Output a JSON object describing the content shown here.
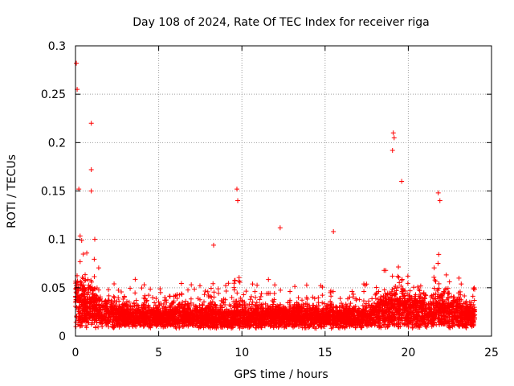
{
  "chart_data": {
    "type": "scatter",
    "title": "Day 108 of 2024, Rate Of TEC Index for receiver riga",
    "xlabel": "GPS time / hours",
    "ylabel": "ROTI / TECUs",
    "xlim": [
      0,
      25
    ],
    "ylim": [
      0,
      0.3
    ],
    "x_ticks": [
      0,
      5,
      10,
      15,
      20,
      25
    ],
    "y_ticks": [
      0,
      0.05,
      0.1,
      0.15,
      0.2,
      0.25,
      0.3
    ],
    "x_tick_labels": [
      "0",
      "5",
      "10",
      "15",
      "20",
      "25"
    ],
    "y_tick_labels": [
      "0",
      "0.05",
      "0.1",
      "0.15",
      "0.2",
      "0.25",
      "0.3"
    ],
    "grid": true,
    "marker": "+",
    "color": "#ff0000",
    "x_data_range": [
      0,
      24
    ],
    "notable_points": [
      {
        "x": 0.05,
        "y": 0.282
      },
      {
        "x": 0.1,
        "y": 0.255
      },
      {
        "x": 0.95,
        "y": 0.22
      },
      {
        "x": 0.95,
        "y": 0.172
      },
      {
        "x": 0.2,
        "y": 0.152
      },
      {
        "x": 0.95,
        "y": 0.15
      },
      {
        "x": 9.7,
        "y": 0.152
      },
      {
        "x": 9.75,
        "y": 0.14
      },
      {
        "x": 19.1,
        "y": 0.21
      },
      {
        "x": 19.15,
        "y": 0.205
      },
      {
        "x": 19.05,
        "y": 0.192
      },
      {
        "x": 19.6,
        "y": 0.16
      },
      {
        "x": 21.8,
        "y": 0.148
      },
      {
        "x": 21.9,
        "y": 0.14
      },
      {
        "x": 15.5,
        "y": 0.108
      },
      {
        "x": 12.3,
        "y": 0.112
      },
      {
        "x": 8.3,
        "y": 0.094
      }
    ]
  }
}
